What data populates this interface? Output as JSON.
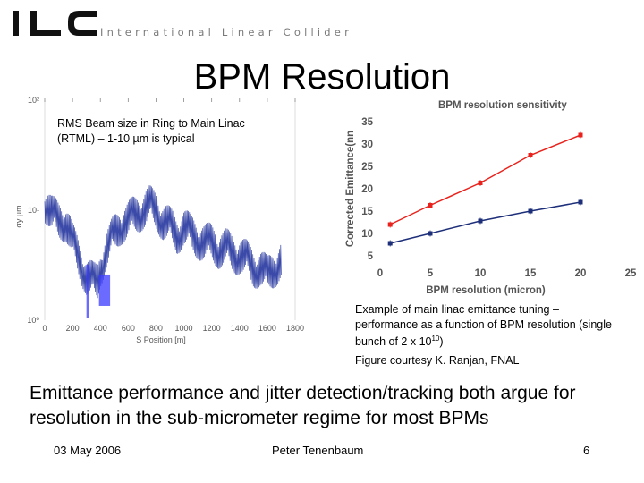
{
  "header": {
    "logo_text": "ILC",
    "logo_subtitle": "International Linear Collider"
  },
  "slide": {
    "title": "BPM Resolution",
    "left_caption_line1": "RMS Beam size in Ring to Main Linac",
    "left_caption_line2": "(RTML) – 1-10 µm is typical",
    "right_caption": "Example of main linac emittance tuning – performance as a function of BPM resolution (single bunch of 2 x 10",
    "right_caption_exp": "10",
    "right_caption_end": ")",
    "courtesy": "Figure courtesy K. Ranjan, FNAL",
    "body": "Emittance performance and jitter detection/tracking both argue for resolution in the sub-micrometer regime for most BPMs"
  },
  "footer": {
    "date": "03 May 2006",
    "author": "Peter Tenenbaum",
    "page": "6"
  },
  "colors": {
    "logo": "#111111",
    "red_series": "#e8221c",
    "blue_series": "#1e2f7a",
    "beam_trace": "#3b4aa8",
    "beam_highlight": "#3a3aff",
    "axis_text": "#555555"
  },
  "chart_data": [
    {
      "type": "line",
      "title": "",
      "xlabel": "S Position [m]",
      "ylabel": "σy µm",
      "log_scale_y": true,
      "xlim": [
        0,
        1800
      ],
      "ylim": [
        1,
        100
      ],
      "x_ticks": [
        "0",
        "200",
        "400",
        "600",
        "800",
        "1000",
        "1200",
        "1400",
        "1600",
        "1800"
      ],
      "y_ticks": [
        "10⁰",
        "10¹",
        "10²"
      ],
      "series": [
        {
          "x": [
            0,
            50,
            100,
            150,
            200,
            250,
            300,
            350,
            380,
            400,
            450,
            500,
            550,
            600,
            650,
            700,
            750,
            800,
            850,
            900,
            950,
            1000,
            1050,
            1100,
            1150,
            1200,
            1250,
            1300,
            1350,
            1400,
            1450,
            1500,
            1550,
            1600,
            1650,
            1700
          ],
          "y": [
            12,
            9,
            8,
            8,
            5,
            3.5,
            2.5,
            2.2,
            2.2,
            3,
            4.5,
            6,
            7.5,
            8,
            9,
            10,
            11,
            10,
            8,
            7,
            6,
            7,
            6,
            5.5,
            5,
            5,
            4.5,
            4.5,
            4,
            4,
            3.5,
            3,
            3,
            2.5,
            3,
            3.5
          ]
        }
      ]
    },
    {
      "type": "line",
      "title": "BPM resolution sensitivity",
      "xlabel": "BPM resolution (micron)",
      "ylabel": "Corrected Emittance(nn",
      "xlim": [
        0,
        25
      ],
      "ylim": [
        5,
        35
      ],
      "x_ticks": [
        "0",
        "5",
        "10",
        "15",
        "20",
        "25"
      ],
      "y_ticks": [
        "5",
        "10",
        "15",
        "20",
        "25",
        "30",
        "35"
      ],
      "x": [
        1,
        5,
        10,
        15,
        20
      ],
      "series": [
        {
          "name": "",
          "color": "#e8221c",
          "values": [
            12,
            16.3,
            21.3,
            27.5,
            32
          ]
        },
        {
          "name": "",
          "color": "#1e2f7a",
          "values": [
            7.8,
            10,
            12.8,
            15,
            17
          ]
        }
      ]
    }
  ]
}
